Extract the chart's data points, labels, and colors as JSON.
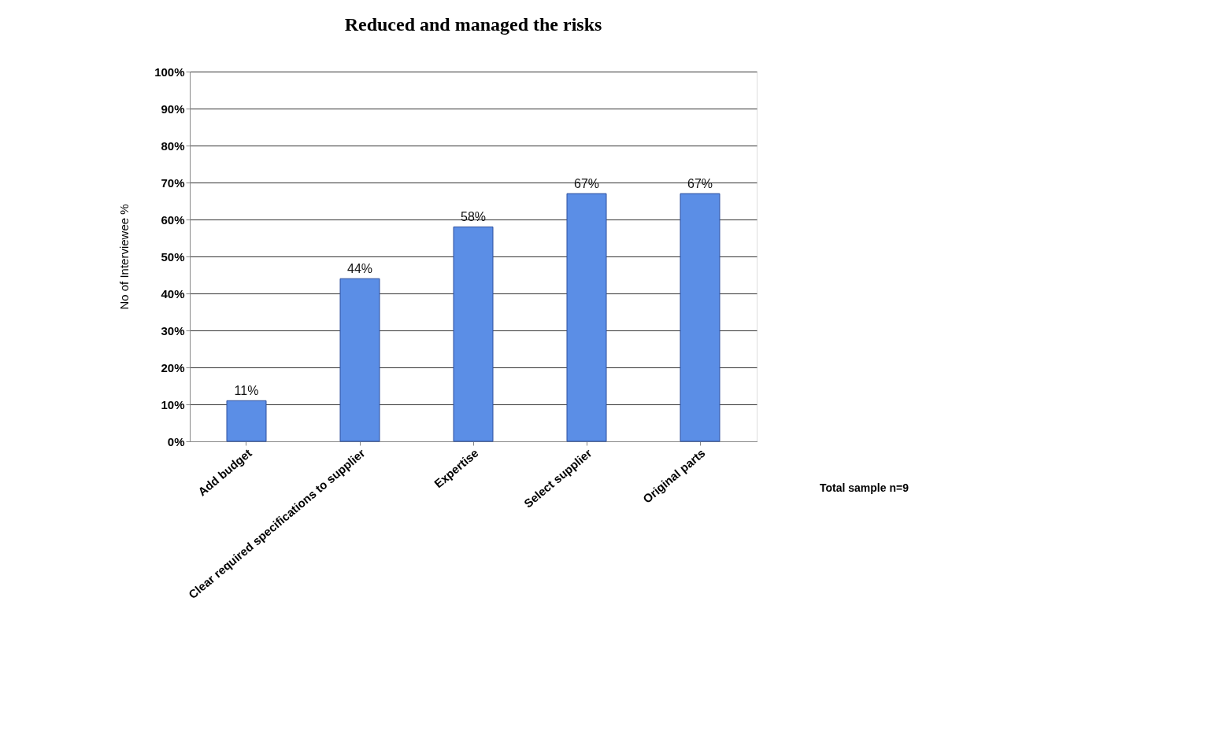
{
  "chart_data": {
    "type": "bar",
    "title": "Reduced and managed the risks",
    "ylabel": "No of Interviewee %",
    "categories": [
      "Add budget",
      "Clear required specifications to supplier",
      "Expertise",
      "Select supplier",
      "Original parts"
    ],
    "values": [
      11,
      44,
      58,
      67,
      67
    ],
    "value_labels": [
      "11%",
      "44%",
      "58%",
      "67%",
      "67%"
    ],
    "color": "#5b8ee6",
    "ylim": [
      0,
      100
    ],
    "yticks": [
      {
        "value": 0,
        "label": "0%"
      },
      {
        "value": 10,
        "label": "10%"
      },
      {
        "value": 20,
        "label": "20%"
      },
      {
        "value": 30,
        "label": "30%"
      },
      {
        "value": 40,
        "label": "40%"
      },
      {
        "value": 50,
        "label": "50%"
      },
      {
        "value": 60,
        "label": "60%"
      },
      {
        "value": 70,
        "label": "70%"
      },
      {
        "value": 80,
        "label": "80%"
      },
      {
        "value": 90,
        "label": "90%"
      },
      {
        "value": 100,
        "label": "100%"
      }
    ],
    "grid": "y",
    "annotations": [
      "Total sample  n=9"
    ]
  }
}
